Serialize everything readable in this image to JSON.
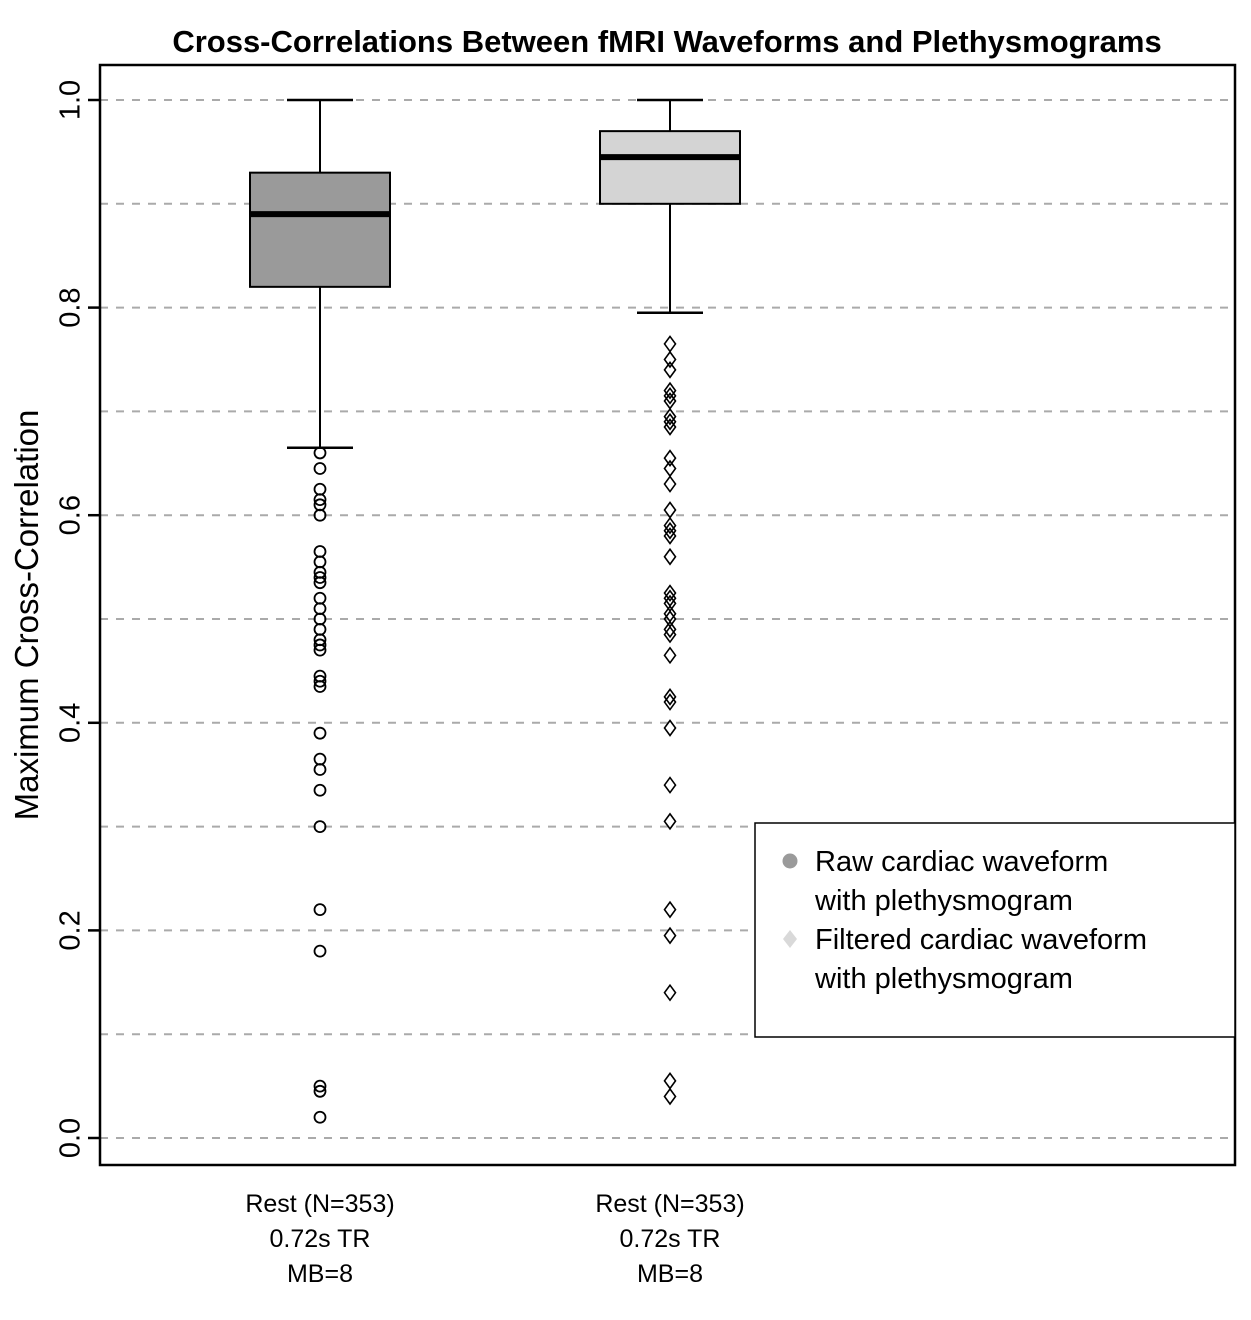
{
  "chart_data": {
    "type": "boxplot",
    "title": "Cross-Correlations Between fMRI Waveforms and Plethysmograms",
    "ylabel": "Maximum Cross-Correlation",
    "ylim": [
      0.0,
      1.0
    ],
    "yticks": [
      "0.0",
      "0.2",
      "0.4",
      "0.6",
      "0.8",
      "1.0"
    ],
    "ytick_values": [
      0.0,
      0.2,
      0.4,
      0.6,
      0.8,
      1.0
    ],
    "gridline_values": [
      0.0,
      0.1,
      0.2,
      0.3,
      0.4,
      0.5,
      0.6,
      0.7,
      0.8,
      0.9,
      1.0
    ],
    "grid_style": "dashed",
    "categories": [
      [
        "Rest (N=353)",
        "0.72s TR",
        "MB=8"
      ],
      [
        "Rest (N=353)",
        "0.72s TR",
        "MB=8"
      ]
    ],
    "series": [
      {
        "name": "Raw cardiac waveform with plethysmogram",
        "marker": "circle",
        "box_fill": "#9a9a9a",
        "stats": {
          "whisker_low": 0.665,
          "q1": 0.82,
          "median": 0.89,
          "q3": 0.93,
          "whisker_high": 1.0
        },
        "outliers": [
          0.66,
          0.645,
          0.625,
          0.615,
          0.61,
          0.6,
          0.565,
          0.555,
          0.545,
          0.54,
          0.535,
          0.52,
          0.51,
          0.5,
          0.49,
          0.48,
          0.475,
          0.47,
          0.445,
          0.44,
          0.435,
          0.39,
          0.365,
          0.355,
          0.335,
          0.3,
          0.22,
          0.18,
          0.05,
          0.045,
          0.02
        ]
      },
      {
        "name": "Filtered cardiac waveform with plethysmogram",
        "marker": "diamond",
        "box_fill": "#d4d4d4",
        "stats": {
          "whisker_low": 0.795,
          "q1": 0.9,
          "median": 0.945,
          "q3": 0.97,
          "whisker_high": 1.0
        },
        "outliers": [
          0.765,
          0.75,
          0.74,
          0.72,
          0.715,
          0.71,
          0.695,
          0.69,
          0.685,
          0.655,
          0.645,
          0.63,
          0.605,
          0.59,
          0.585,
          0.58,
          0.56,
          0.525,
          0.52,
          0.515,
          0.505,
          0.5,
          0.49,
          0.485,
          0.465,
          0.425,
          0.42,
          0.395,
          0.34,
          0.305,
          0.22,
          0.195,
          0.14,
          0.055,
          0.04
        ]
      }
    ],
    "legend": {
      "position": "lower-right",
      "entries": [
        {
          "marker": "circle",
          "marker_color": "#9a9a9a",
          "label_lines": [
            "Raw cardiac waveform",
            "with plethysmogram"
          ]
        },
        {
          "marker": "diamond",
          "marker_color": "#d9d9d9",
          "label_lines": [
            "Filtered cardiac waveform",
            "with plethysmogram"
          ]
        }
      ]
    },
    "colors": {
      "box_border": "#000000",
      "median_line": "#000000",
      "gridline": "#aaaaaa",
      "plot_border": "#000000",
      "background": "#ffffff"
    }
  }
}
